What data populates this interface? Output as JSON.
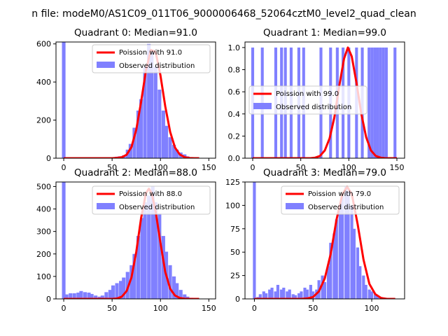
{
  "figure": {
    "suptitle": "n file: modeM0/AS1C09_011T06_9000006468_52064cztM0_level2_quad_clean"
  },
  "colors": {
    "hist": "#8080ff",
    "poisson": "#ff0000"
  },
  "chart_data": [
    {
      "type": "bar",
      "title": "Quadrant 0: Median=91.0",
      "xlim": [
        -8,
        157
      ],
      "ylim": [
        0,
        610
      ],
      "xticks": [
        0,
        50,
        100,
        150
      ],
      "yticks": [
        0,
        200,
        400,
        600
      ],
      "legend": {
        "placement": "top-right",
        "entries": [
          "Poission with 91.0",
          "Observed distribution"
        ]
      },
      "hist": {
        "bin_width": 3.7,
        "x": [
          0,
          51,
          55,
          58,
          62,
          66,
          69,
          73,
          77,
          80,
          84,
          88,
          91,
          95,
          99,
          103,
          106,
          110,
          114,
          117,
          121,
          125,
          128,
          132
        ],
        "values": [
          610,
          4,
          8,
          10,
          15,
          45,
          75,
          160,
          250,
          310,
          480,
          600,
          560,
          480,
          360,
          250,
          170,
          110,
          70,
          45,
          30,
          20,
          10,
          5
        ]
      },
      "poisson": {
        "name": "Poission with 91.0",
        "x": [
          0,
          50,
          55,
          60,
          65,
          70,
          75,
          80,
          85,
          90,
          95,
          100,
          105,
          110,
          115,
          120,
          125,
          130,
          135,
          140
        ],
        "y": [
          0,
          0,
          2,
          5,
          18,
          58,
          150,
          296,
          460,
          568,
          558,
          435,
          272,
          138,
          56,
          19,
          5,
          1,
          0,
          0
        ]
      }
    },
    {
      "type": "bar",
      "title": "Quadrant 1: Median=99.0",
      "xlim": [
        -8,
        158
      ],
      "ylim": [
        0,
        1.05
      ],
      "xticks": [
        0,
        50,
        100,
        150
      ],
      "yticks": [
        0.0,
        0.2,
        0.4,
        0.6,
        0.8,
        1.0
      ],
      "legend": {
        "placement": "center-left",
        "entries": [
          "Poission with 99.0",
          "Observed distribution"
        ]
      },
      "hist": {
        "bin_width": 3.0,
        "x": [
          0,
          10,
          24,
          30,
          34,
          40,
          48,
          53,
          71,
          81,
          88,
          94,
          100,
          108,
          114,
          121,
          124,
          127,
          130,
          133,
          136,
          139,
          148
        ],
        "values": [
          1,
          1,
          1,
          1,
          1,
          1,
          1,
          1,
          1,
          1,
          1,
          1,
          1,
          1,
          1,
          1,
          1,
          1,
          1,
          1,
          1,
          1,
          1
        ]
      },
      "poisson": {
        "name": "Poission with 99.0",
        "x": [
          0,
          60,
          65,
          70,
          75,
          80,
          85,
          90,
          95,
          99,
          103,
          108,
          113,
          118,
          123,
          128,
          133,
          138,
          150
        ],
        "y": [
          0,
          0,
          0.005,
          0.02,
          0.07,
          0.18,
          0.37,
          0.65,
          0.9,
          1.0,
          0.92,
          0.68,
          0.4,
          0.19,
          0.07,
          0.02,
          0.005,
          0,
          0
        ]
      }
    },
    {
      "type": "bar",
      "title": "Quadrant 2: Median=88.0",
      "xlim": [
        -8,
        157
      ],
      "ylim": [
        0,
        520
      ],
      "xticks": [
        0,
        50,
        100,
        150
      ],
      "yticks": [
        0,
        100,
        200,
        300,
        400,
        500
      ],
      "legend": {
        "placement": "top-right",
        "entries": [
          "Poission with 88.0",
          "Observed distribution"
        ]
      },
      "hist": {
        "bin_width": 3.7,
        "x": [
          0,
          3,
          7,
          11,
          15,
          18,
          22,
          26,
          29,
          33,
          37,
          40,
          44,
          48,
          51,
          55,
          59,
          62,
          66,
          70,
          73,
          77,
          81,
          84,
          88,
          92,
          95,
          99,
          103,
          106,
          110,
          114,
          117,
          121,
          125,
          128,
          132,
          136
        ],
        "values": [
          520,
          20,
          25,
          25,
          28,
          35,
          30,
          28,
          22,
          15,
          10,
          15,
          30,
          40,
          60,
          70,
          80,
          95,
          120,
          150,
          200,
          280,
          360,
          430,
          460,
          500,
          430,
          380,
          280,
          210,
          150,
          100,
          70,
          40,
          20,
          10,
          5,
          2
        ]
      },
      "poisson": {
        "name": "Poission with 88.0",
        "x": [
          0,
          50,
          55,
          60,
          65,
          70,
          75,
          80,
          85,
          88,
          91,
          95,
          100,
          105,
          110,
          115,
          120,
          125,
          130,
          140
        ],
        "y": [
          0,
          0,
          2,
          10,
          35,
          95,
          210,
          360,
          470,
          490,
          470,
          390,
          250,
          120,
          45,
          15,
          4,
          1,
          0,
          0
        ]
      }
    },
    {
      "type": "bar",
      "title": "Quadrant 3: Median=79.0",
      "xlim": [
        -8,
        128
      ],
      "ylim": [
        0,
        125
      ],
      "xticks": [
        0,
        50,
        100
      ],
      "yticks": [
        0,
        25,
        50,
        75,
        100,
        125
      ],
      "legend": {
        "placement": "top-right",
        "entries": [
          "Poission with 79.0",
          "Observed distribution"
        ]
      },
      "hist": {
        "bin_width": 2.5,
        "x": [
          0,
          3,
          5,
          8,
          10,
          13,
          15,
          18,
          20,
          23,
          25,
          28,
          30,
          33,
          35,
          38,
          40,
          43,
          45,
          48,
          50,
          53,
          55,
          58,
          60,
          63,
          65,
          68,
          70,
          73,
          75,
          78,
          80,
          83,
          85,
          88,
          90,
          93,
          95,
          98,
          100,
          103,
          105,
          108,
          110,
          113,
          115
        ],
        "values": [
          125,
          2,
          5,
          8,
          6,
          10,
          12,
          8,
          15,
          10,
          12,
          8,
          10,
          5,
          4,
          6,
          8,
          12,
          10,
          15,
          8,
          10,
          20,
          25,
          18,
          35,
          60,
          70,
          85,
          100,
          110,
          120,
          115,
          100,
          75,
          55,
          35,
          25,
          15,
          10,
          8,
          5,
          3,
          2,
          1,
          1,
          1
        ]
      },
      "poisson": {
        "name": "Poission with 79.0",
        "x": [
          0,
          40,
          45,
          50,
          55,
          60,
          65,
          70,
          75,
          79,
          83,
          88,
          93,
          98,
          103,
          108,
          113,
          120
        ],
        "y": [
          0,
          0,
          0.5,
          2,
          8,
          22,
          48,
          85,
          112,
          120,
          112,
          80,
          42,
          16,
          5,
          1,
          0,
          0
        ]
      }
    }
  ]
}
